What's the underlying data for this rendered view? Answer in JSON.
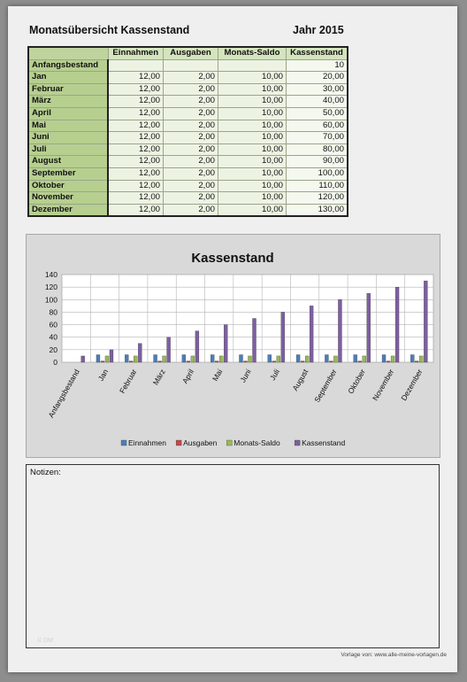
{
  "header": {
    "title": "Monatsübersicht Kassenstand",
    "year_label": "Jahr 2015"
  },
  "table": {
    "columns": [
      "",
      "Einnahmen",
      "Ausgaben",
      "Monats-Saldo",
      "Kassenstand"
    ],
    "rows": [
      {
        "label": "Anfangsbestand",
        "cells": [
          "",
          "",
          "",
          "10"
        ]
      },
      {
        "label": "Jan",
        "cells": [
          "12,00",
          "2,00",
          "10,00",
          "20,00"
        ]
      },
      {
        "label": "Februar",
        "cells": [
          "12,00",
          "2,00",
          "10,00",
          "30,00"
        ]
      },
      {
        "label": "März",
        "cells": [
          "12,00",
          "2,00",
          "10,00",
          "40,00"
        ]
      },
      {
        "label": "April",
        "cells": [
          "12,00",
          "2,00",
          "10,00",
          "50,00"
        ]
      },
      {
        "label": "Mai",
        "cells": [
          "12,00",
          "2,00",
          "10,00",
          "60,00"
        ]
      },
      {
        "label": "Juni",
        "cells": [
          "12,00",
          "2,00",
          "10,00",
          "70,00"
        ]
      },
      {
        "label": "Juli",
        "cells": [
          "12,00",
          "2,00",
          "10,00",
          "80,00"
        ]
      },
      {
        "label": "August",
        "cells": [
          "12,00",
          "2,00",
          "10,00",
          "90,00"
        ]
      },
      {
        "label": "September",
        "cells": [
          "12,00",
          "2,00",
          "10,00",
          "100,00"
        ]
      },
      {
        "label": "Oktober",
        "cells": [
          "12,00",
          "2,00",
          "10,00",
          "110,00"
        ]
      },
      {
        "label": "November",
        "cells": [
          "12,00",
          "2,00",
          "10,00",
          "120,00"
        ]
      },
      {
        "label": "Dezember",
        "cells": [
          "12,00",
          "2,00",
          "10,00",
          "130,00"
        ]
      }
    ]
  },
  "chart_data": {
    "type": "bar",
    "title": "Kassenstand",
    "categories": [
      "Anfangsbestand",
      "Jan",
      "Februar",
      "März",
      "April",
      "Mai",
      "Juni",
      "Juli",
      "August",
      "September",
      "Oktober",
      "November",
      "Dezember"
    ],
    "series": [
      {
        "name": "Einnahmen",
        "color": "#4a7ebb",
        "values": [
          null,
          12,
          12,
          12,
          12,
          12,
          12,
          12,
          12,
          12,
          12,
          12,
          12
        ]
      },
      {
        "name": "Ausgaben",
        "color": "#be4b48",
        "values": [
          null,
          2,
          2,
          2,
          2,
          2,
          2,
          2,
          2,
          2,
          2,
          2,
          2
        ]
      },
      {
        "name": "Monats-Saldo",
        "color": "#98b954",
        "values": [
          null,
          10,
          10,
          10,
          10,
          10,
          10,
          10,
          10,
          10,
          10,
          10,
          10
        ]
      },
      {
        "name": "Kassenstand",
        "color": "#7d5fa0",
        "values": [
          10,
          20,
          30,
          40,
          50,
          60,
          70,
          80,
          90,
          100,
          110,
          120,
          130
        ]
      }
    ],
    "yticks": [
      0,
      20,
      40,
      60,
      80,
      100,
      120,
      140
    ],
    "ylim": [
      0,
      140
    ],
    "grid": true,
    "legend_position": "bottom"
  },
  "notes": {
    "label": "Notizen:",
    "watermark": "© DM"
  },
  "footer": {
    "credit": "Vorlage von: www.alle-meine-vorlagen.de"
  }
}
